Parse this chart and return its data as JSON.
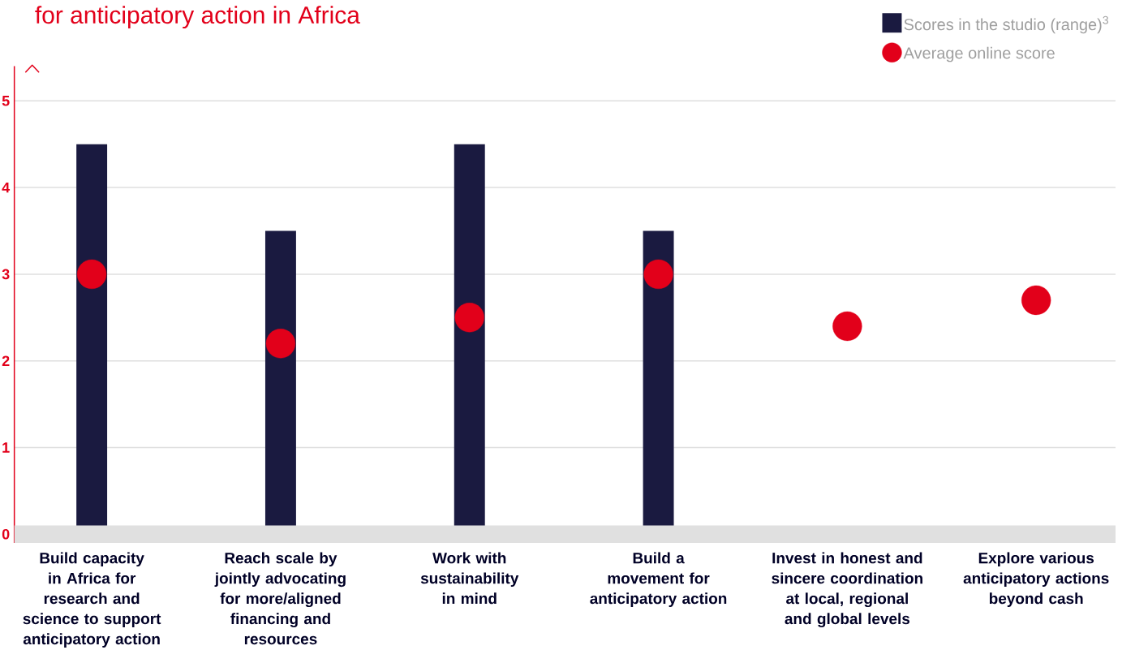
{
  "chart_data": {
    "type": "bar",
    "title": "for anticipatory action in Africa",
    "categories": [
      "Build capacity in Africa for research and science to support anticipatory action",
      "Reach scale by jointly advocating for more/aligned financing and resources",
      "Work with sustainability in mind",
      "Build a movement for anticipatory action",
      "Invest in honest and sincere coordination at local, regional and global levels",
      "Explore various anticipatory actions beyond cash"
    ],
    "series": [
      {
        "name": "Scores in the studio (range)$^{3}$",
        "type": "bar",
        "color": "#1a1a40",
        "values": [
          4.5,
          3.5,
          4.5,
          3.5,
          null,
          null
        ]
      },
      {
        "name": "Average online score",
        "type": "scatter",
        "color": "#e2001a",
        "values": [
          3.0,
          2.2,
          2.5,
          3.0,
          2.4,
          2.7
        ]
      }
    ],
    "ylim": [
      -0.1,
      5.4
    ],
    "yticks": [
      0,
      1,
      2,
      3,
      4,
      5
    ],
    "grid": "y",
    "legend": "top right",
    "marker": "circle",
    "bands": [
      {
        "axis": "y",
        "from": -0.1,
        "to": 0.1,
        "color": "#e0e0e0"
      }
    ]
  }
}
